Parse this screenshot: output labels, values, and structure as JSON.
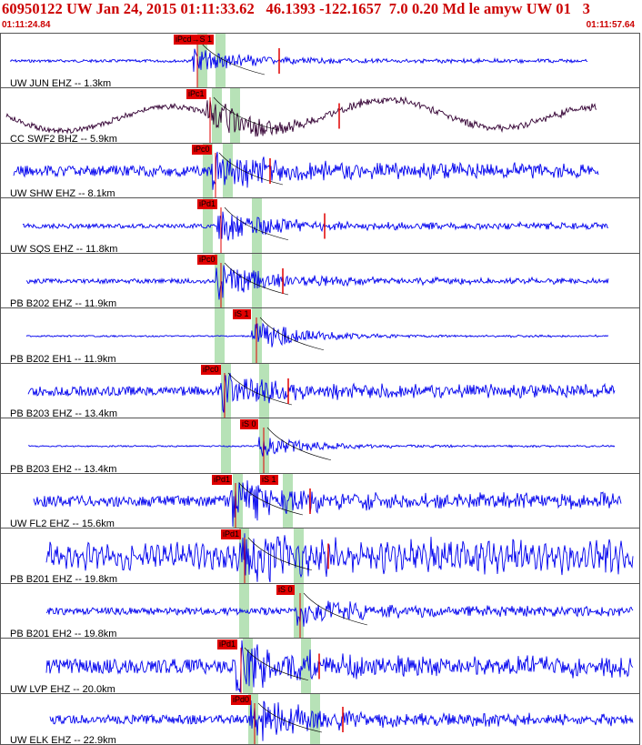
{
  "header": {
    "title": "60950122 UW Jan 24, 2015 01:11:33.62   46.1393 -122.1657  7.0 0.20 Md le amyw UW 01   3",
    "start_time": "01:11:24.84",
    "end_time": "01:11:57.64"
  },
  "colors": {
    "trace": "#0000ee",
    "trace_bb": "#330033",
    "pick": "#e00000",
    "window": "#b7e2b7",
    "header_text": "#cc0000"
  },
  "channels": [
    {
      "label": "UW JUN EHZ -- 1.3km",
      "pick_label": "iPcd→S 1",
      "color": "trace"
    },
    {
      "label": "CC SWF2 BHZ -- 5.9km",
      "pick_label": "iPc1",
      "color": "trace_bb"
    },
    {
      "label": "UW SHW EHZ -- 8.1km",
      "pick_label": "iPc0",
      "color": "trace"
    },
    {
      "label": "UW SQS EHZ -- 11.8km",
      "pick_label": "iPd1",
      "color": "trace"
    },
    {
      "label": "PB B202 EHZ -- 11.9km",
      "pick_label": "iPc0",
      "color": "trace"
    },
    {
      "label": "PB B202 EH1 -- 11.9km",
      "pick_label": "iS 1",
      "color": "trace"
    },
    {
      "label": "PB B203 EHZ -- 13.4km",
      "pick_label": "iPc0",
      "color": "trace"
    },
    {
      "label": "PB B203 EH2 -- 13.4km",
      "pick_label": "iS 0",
      "color": "trace"
    },
    {
      "label": "UW FL2 EHZ -- 15.6km",
      "pick_label": "iPd1",
      "pick_label_2": "iS 1",
      "color": "trace"
    },
    {
      "label": "PB B201 EHZ -- 19.8km",
      "pick_label": "iPd1",
      "color": "trace"
    },
    {
      "label": "PB B201 EH2 -- 19.8km",
      "pick_label": "iS 0",
      "color": "trace"
    },
    {
      "label": "UW LVP EHZ -- 20.0km",
      "pick_label": "iPd1",
      "color": "trace"
    },
    {
      "label": "UW ELK EHZ -- 22.9km",
      "pick_label": "iPd0",
      "color": "trace"
    }
  ]
}
